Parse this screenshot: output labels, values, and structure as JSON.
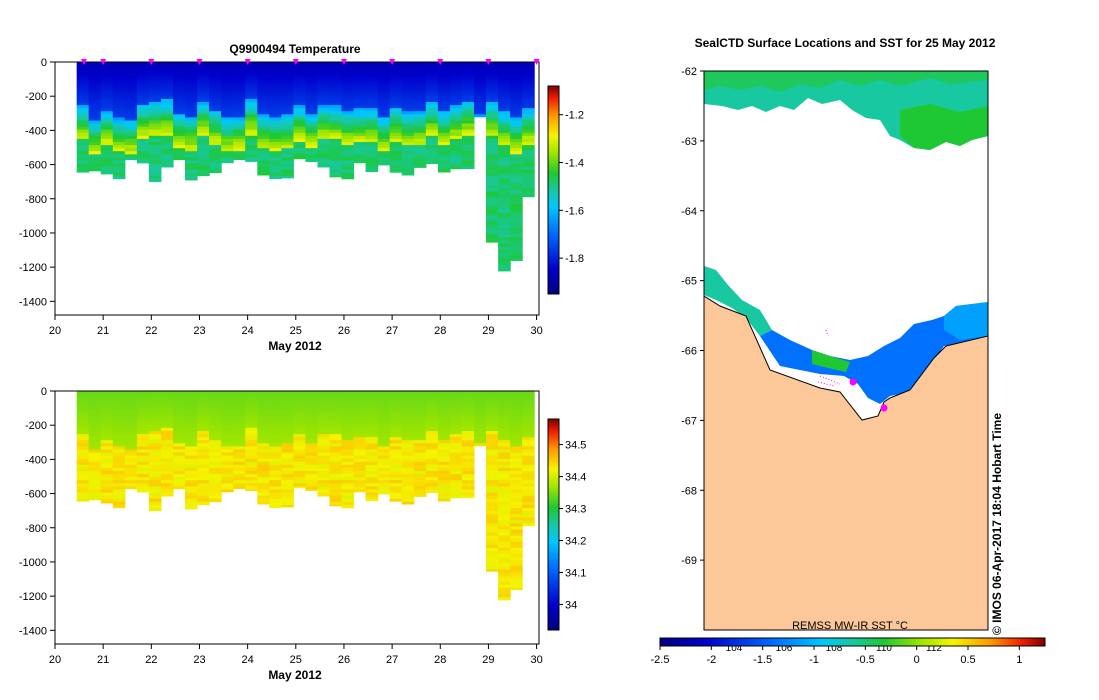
{
  "chart_data": [
    {
      "type": "heatmap",
      "id": "temperature",
      "title": "Q9900494  Temperature",
      "xlabel": "May 2012",
      "xlim": [
        20,
        30.05
      ],
      "ylim": [
        -1480,
        0
      ],
      "xticks": [
        "20",
        "21",
        "22",
        "23",
        "24",
        "25",
        "26",
        "27",
        "28",
        "29",
        "30"
      ],
      "yticks": [
        "0",
        "-200",
        "-400",
        "-600",
        "-800",
        "-1000",
        "-1200",
        "-1400"
      ],
      "colorbar": {
        "ticks": [
          "-1.2",
          "-1.4",
          "-1.6",
          "-1.8"
        ],
        "values": [
          -1.2,
          -1.4,
          -1.6,
          -1.8
        ],
        "range": [
          -1.95,
          -1.08
        ]
      },
      "profile_markers_day": [
        20.6,
        21,
        22,
        23,
        24,
        25,
        26,
        27,
        28,
        29,
        30
      ]
    },
    {
      "type": "heatmap",
      "id": "salinity",
      "title": "",
      "xlabel": "May 2012",
      "xlim": [
        20,
        30.05
      ],
      "ylim": [
        -1480,
        0
      ],
      "xticks": [
        "20",
        "21",
        "22",
        "23",
        "24",
        "25",
        "26",
        "27",
        "28",
        "29",
        "30"
      ],
      "yticks": [
        "0",
        "-200",
        "-400",
        "-600",
        "-800",
        "-1000",
        "-1200",
        "-1400"
      ],
      "colorbar": {
        "ticks": [
          "34.5",
          "34.4",
          "34.3",
          "34.2",
          "34.1",
          "34"
        ],
        "values": [
          34.5,
          34.4,
          34.3,
          34.2,
          34.1,
          34.0
        ],
        "range": [
          33.92,
          34.58
        ]
      }
    },
    {
      "type": "map",
      "id": "sst-map",
      "title": "SealCTD Surface Locations and SST for 25 May 2012",
      "ylim": [
        -70,
        -62
      ],
      "yticks": [
        "-62",
        "-63",
        "-64",
        "-65",
        "-66",
        "-67",
        "-68",
        "-69"
      ],
      "colorbar_label": "REMSS MW-IR SST °C",
      "colorbar_ticks": [
        "-2.5",
        "-2",
        "-1.5",
        "-1",
        "-0.5",
        "0",
        "0.5",
        "1"
      ],
      "colorbar_values": [
        -2.5,
        -2,
        -1.5,
        -1,
        -0.5,
        0,
        0.5,
        1
      ],
      "colorbar_range": [
        -2.5,
        1.25
      ],
      "longitude_ticks": [
        "104",
        "106",
        "108",
        "110",
        "112"
      ],
      "credit": "© IMOS 06-Apr-2017 18:04 Hobart Time"
    }
  ],
  "colors": {
    "land": "#fcc89a",
    "marker": "#ff00ff",
    "coast": "#000000"
  }
}
